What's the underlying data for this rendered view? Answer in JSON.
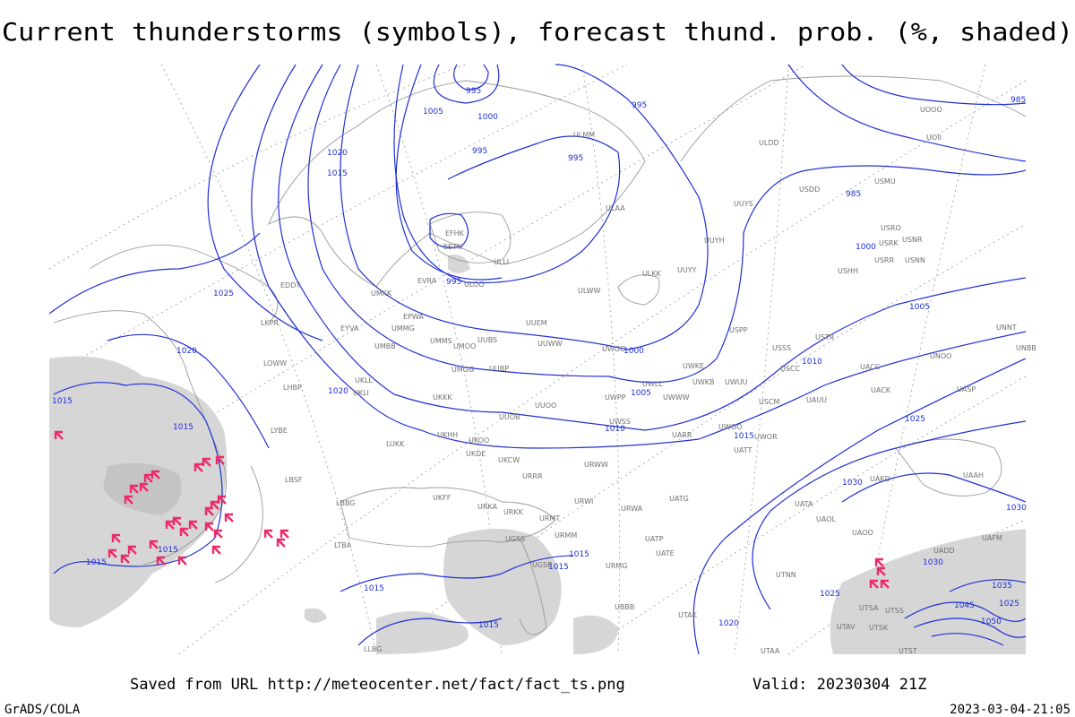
{
  "header": {
    "title": "Current thunderstorms (symbols), forecast thund. prob. (%, shaded)"
  },
  "footer": {
    "source": "Saved from URL http://meteocenter.net/fact/fact_ts.png",
    "valid": "Valid: 20230304 21Z",
    "software": "GrADS/COLA",
    "timestamp": "2023-03-04-21:05"
  },
  "isobar_labels": [
    "995",
    "1005",
    "1000",
    "995",
    "995",
    "995",
    "1020",
    "1015",
    "985",
    "985",
    "1000",
    "995",
    "1025",
    "1005",
    "1020",
    "1000",
    "1010",
    "1020",
    "1005",
    "1015",
    "1015",
    "1010",
    "1025",
    "1015",
    "1030",
    "1030",
    "1015",
    "1015",
    "1015",
    "1015",
    "1030",
    "1015",
    "1025",
    "1035",
    "1015",
    "1020",
    "1045",
    "1050",
    "1025"
  ],
  "station_labels": [
    "ULMM",
    "ULDD",
    "UUYS",
    "USDD",
    "USMU",
    "ULAA",
    "UOOO",
    "UOII",
    "EFHK",
    "EETN",
    "ULLI",
    "ULOO",
    "EVRA",
    "UUYH",
    "ULKK",
    "UUYY",
    "USRO",
    "USRK",
    "USNR",
    "USRR",
    "USNN",
    "USHH",
    "EDDT",
    "UMKK",
    "ULWW",
    "EPWA",
    "UUEM",
    "USPP",
    "UNNT",
    "LKPR",
    "EYVA",
    "UMMG",
    "UMMS",
    "UMOO",
    "UUBS",
    "UUWW",
    "UWGG",
    "USSS",
    "USTR",
    "UNBB",
    "UMBB",
    "LOWW",
    "UKLL",
    "UKLI",
    "UMGG",
    "UUBP",
    "UWKE",
    "USCC",
    "UACC",
    "UNOO",
    "LHBP",
    "UWLL",
    "UWKB",
    "UWUU",
    "UACK",
    "UASP",
    "UKKK",
    "UWPP",
    "UWWW",
    "USCM",
    "UAUU",
    "UUOO",
    "UUOB",
    "UWSS",
    "UWOO",
    "UWOR",
    "LYBE",
    "UKHH",
    "UKOO",
    "LUKK",
    "UARR",
    "UATT",
    "UKDE",
    "UKCW",
    "URWW",
    "UAKD",
    "UAAH",
    "LBSF",
    "URRR",
    "LBBG",
    "UKFF",
    "URKA",
    "URKK",
    "URWI",
    "UATG",
    "UATA",
    "URWA",
    "URMT",
    "UAOL",
    "UAOO",
    "LTBA",
    "UGSS",
    "URMM",
    "UATP",
    "UAFM",
    "UATE",
    "UADD",
    "URMG",
    "UTNN",
    "UGSB",
    "UBBB",
    "UTAK",
    "UTSA",
    "UTSS",
    "UTAV",
    "UTSK",
    "UTAA",
    "UTST",
    "LLBG"
  ]
}
